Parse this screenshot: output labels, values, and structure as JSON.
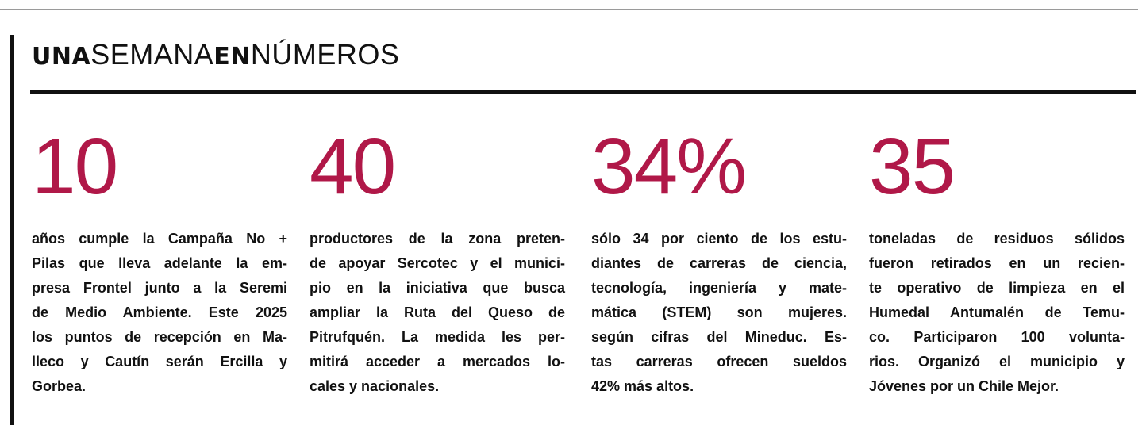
{
  "header": {
    "title_parts": [
      "UNA",
      "SEMANA",
      "EN",
      "NÚMEROS"
    ]
  },
  "items": [
    {
      "number": "10",
      "lines": [
        "años cumple la Campaña No +",
        "Pilas que lleva adelante la em-",
        "presa Frontel junto a la Seremi",
        "de Medio Ambiente. Este 2025",
        "los puntos de recepción en Ma-",
        "lleco y Cautín serán Ercilla y",
        "Gorbea."
      ]
    },
    {
      "number": "40",
      "lines": [
        "productores de la zona preten-",
        "de apoyar Sercotec y el munici-",
        "pio en la iniciativa que busca",
        "ampliar la Ruta del Queso de",
        "Pitrufquén. La medida les per-",
        "mitirá acceder a mercados lo-",
        "cales y nacionales."
      ]
    },
    {
      "number": "34%",
      "lines": [
        "sólo 34 por ciento de los estu-",
        "diantes de carreras de ciencia,",
        "tecnología, ingeniería y mate-",
        "mática (STEM) son mujeres.",
        "según cifras del Mineduc. Es-",
        "tas carreras ofrecen sueldos",
        "42% más altos."
      ]
    },
    {
      "number": "35",
      "lines": [
        "toneladas de residuos sólidos",
        "fueron retirados en un recien-",
        "te operativo de limpieza en el",
        "Humedal Antumalén de Temu-",
        "co. Participaron 100 volunta-",
        "rios. Organizó el municipio y",
        "Jóvenes por un Chile Mejor."
      ]
    }
  ]
}
